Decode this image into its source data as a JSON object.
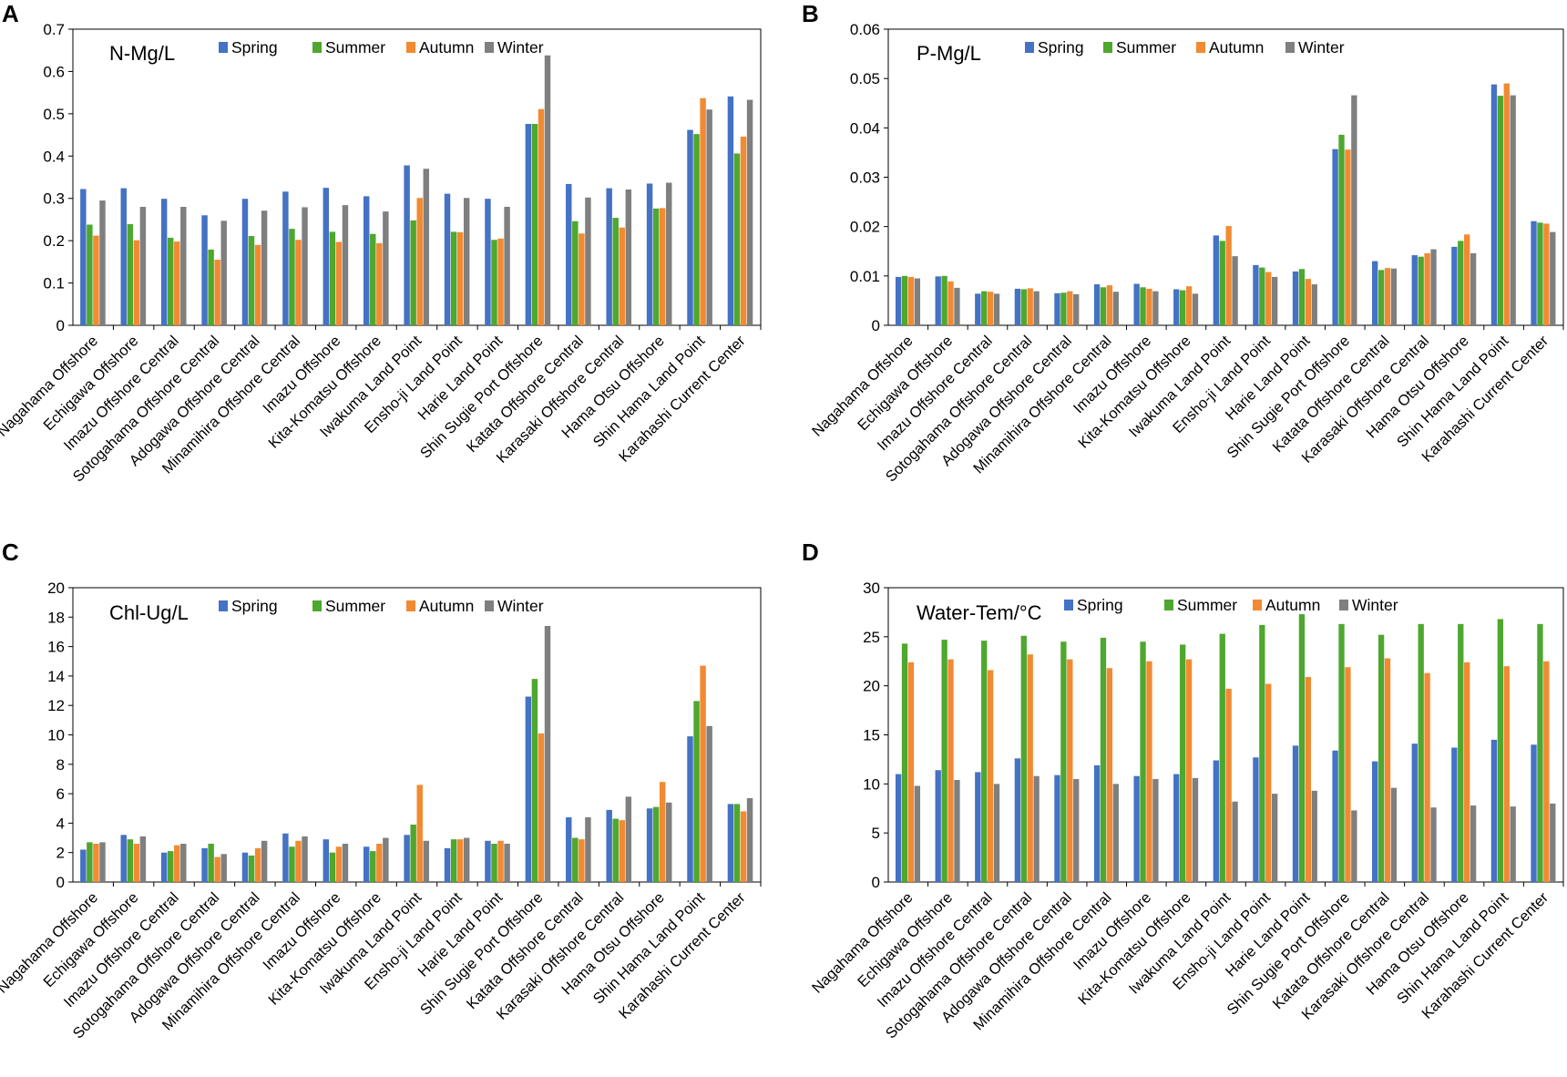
{
  "figure": {
    "colors": {
      "Spring": "#4472c4",
      "Summer": "#4ea72e",
      "Autumn": "#f28a32",
      "Winter": "#7f7f7f",
      "axis": "#000000"
    }
  },
  "chart_data": [
    {
      "panel": "A",
      "type": "bar",
      "title": "N-Mg/L",
      "ylim": [
        0,
        0.7
      ],
      "yticks": [
        "0",
        "0.1",
        "0.2",
        "0.3",
        "0.4",
        "0.5",
        "0.6",
        "0.7"
      ],
      "legend": "top",
      "categories": [
        "Nagahama Offshore",
        "Echigawa Offshore",
        "Imazu Offshore Central",
        "Sotogahama Offshore Central",
        "Adogawa Offshore Central",
        "Minamihira Offshore Central",
        "Imazu Offshore",
        "Kita-Komatsu Offshore",
        "Iwakuma Land Point",
        "Ensho-ji Land Point",
        "Harie Land Point",
        "Shin Sugie Port Offshore",
        "Katata Offshore Central",
        "Karasaki Offshore Central",
        "Hama Otsu Offshore",
        "Shin Hama Land Point",
        "Karahashi Current Center"
      ],
      "series": [
        {
          "name": "Spring",
          "values": [
            0.322,
            0.324,
            0.299,
            0.26,
            0.299,
            0.316,
            0.325,
            0.305,
            0.378,
            0.311,
            0.299,
            0.476,
            0.334,
            0.324,
            0.335,
            0.462,
            0.541
          ]
        },
        {
          "name": "Summer",
          "values": [
            0.238,
            0.239,
            0.207,
            0.179,
            0.211,
            0.228,
            0.221,
            0.216,
            0.248,
            0.221,
            0.202,
            0.476,
            0.246,
            0.254,
            0.276,
            0.452,
            0.406
          ]
        },
        {
          "name": "Autumn",
          "values": [
            0.212,
            0.201,
            0.198,
            0.155,
            0.19,
            0.202,
            0.197,
            0.194,
            0.301,
            0.22,
            0.205,
            0.511,
            0.217,
            0.231,
            0.277,
            0.537,
            0.446
          ]
        },
        {
          "name": "Winter",
          "values": [
            0.295,
            0.28,
            0.28,
            0.247,
            0.271,
            0.279,
            0.284,
            0.269,
            0.37,
            0.301,
            0.28,
            0.638,
            0.302,
            0.321,
            0.337,
            0.51,
            0.533
          ]
        }
      ]
    },
    {
      "panel": "B",
      "type": "bar",
      "title": "P-Mg/L",
      "ylim": [
        0,
        0.06
      ],
      "yticks": [
        "0",
        "0.01",
        "0.02",
        "0.03",
        "0.04",
        "0.05",
        "0.06"
      ],
      "legend": "top",
      "categories": [
        "Nagahama Offshore",
        "Echigawa Offshore",
        "Imazu Offshore Central",
        "Sotogahama Offshore Central",
        "Adogawa Offshore Central",
        "Minamihira Offshore Central",
        "Imazu Offshore",
        "Kita-Komatsu Offshore",
        "Iwakuma Land Point",
        "Ensho-ji Land Point",
        "Harie Land Point",
        "Shin Sugie Port Offshore",
        "Katata Offshore Central",
        "Karasaki Offshore Central",
        "Hama Otsu Offshore",
        "Shin Hama Land Point",
        "Karahashi Current Center"
      ],
      "series": [
        {
          "name": "Spring",
          "values": [
            0.0098,
            0.0099,
            0.0064,
            0.0074,
            0.0065,
            0.0083,
            0.0084,
            0.0073,
            0.0182,
            0.0122,
            0.0109,
            0.0357,
            0.013,
            0.0142,
            0.0159,
            0.0488,
            0.0211
          ]
        },
        {
          "name": "Summer",
          "values": [
            0.01,
            0.01,
            0.0069,
            0.0073,
            0.0066,
            0.0077,
            0.0077,
            0.0071,
            0.0171,
            0.0117,
            0.0114,
            0.0386,
            0.0112,
            0.0139,
            0.0171,
            0.0465,
            0.0208
          ]
        },
        {
          "name": "Autumn",
          "values": [
            0.0098,
            0.0089,
            0.0068,
            0.0075,
            0.0069,
            0.0081,
            0.0074,
            0.0079,
            0.0201,
            0.0108,
            0.0094,
            0.0356,
            0.0116,
            0.0146,
            0.0184,
            0.049,
            0.0206
          ]
        },
        {
          "name": "Winter",
          "values": [
            0.0095,
            0.0076,
            0.0064,
            0.0069,
            0.0063,
            0.0068,
            0.0069,
            0.0064,
            0.014,
            0.0098,
            0.0083,
            0.0466,
            0.0115,
            0.0154,
            0.0146,
            0.0466,
            0.0189
          ]
        }
      ]
    },
    {
      "panel": "C",
      "type": "bar",
      "title": "Chl-Ug/L",
      "ylim": [
        0,
        20
      ],
      "yticks": [
        "0",
        "2",
        "4",
        "6",
        "8",
        "10",
        "12",
        "14",
        "16",
        "18",
        "20"
      ],
      "legend": "top",
      "categories": [
        "Nagahama Offshore",
        "Echigawa Offshore",
        "Imazu Offshore Central",
        "Sotogahama Offshore Central",
        "Adogawa Offshore Central",
        "Minamihira Offshore Central",
        "Imazu Offshore",
        "Kita-Komatsu Offshore",
        "Iwakuma Land Point",
        "Ensho-ji Land Point",
        "Harie Land Point",
        "Shin Sugie Port Offshore",
        "Katata Offshore Central",
        "Karasaki Offshore Central",
        "Hama Otsu Offshore",
        "Shin Hama Land Point",
        "Karahashi Current Center"
      ],
      "series": [
        {
          "name": "Spring",
          "values": [
            2.2,
            3.2,
            2.0,
            2.3,
            2.0,
            3.3,
            2.9,
            2.4,
            3.2,
            2.3,
            2.8,
            12.6,
            4.4,
            4.9,
            5.0,
            9.9,
            5.3
          ]
        },
        {
          "name": "Summer",
          "values": [
            2.7,
            2.9,
            2.1,
            2.6,
            1.8,
            2.4,
            2.0,
            2.1,
            3.9,
            2.9,
            2.6,
            13.8,
            3.0,
            4.3,
            5.1,
            12.3,
            5.3
          ]
        },
        {
          "name": "Autumn",
          "values": [
            2.6,
            2.6,
            2.5,
            1.7,
            2.3,
            2.8,
            2.4,
            2.6,
            6.6,
            2.9,
            2.8,
            10.1,
            2.9,
            4.2,
            6.8,
            14.7,
            4.8
          ]
        },
        {
          "name": "Winter",
          "values": [
            2.7,
            3.1,
            2.6,
            1.9,
            2.8,
            3.1,
            2.6,
            3.0,
            2.8,
            3.0,
            2.6,
            17.4,
            4.4,
            5.8,
            5.4,
            10.6,
            5.7
          ]
        }
      ]
    },
    {
      "panel": "D",
      "type": "bar",
      "title": "Water-Tem/°C",
      "ylim": [
        0,
        30
      ],
      "yticks": [
        "0",
        "5",
        "10",
        "15",
        "20",
        "25",
        "30"
      ],
      "legend": "top",
      "categories": [
        "Nagahama Offshore",
        "Echigawa Offshore",
        "Imazu Offshore Central",
        "Sotogahama Offshore Central",
        "Adogawa Offshore Central",
        "Minamihira Offshore Central",
        "Imazu Offshore",
        "Kita-Komatsu Offshore",
        "Iwakuma Land Point",
        "Ensho-ji Land Point",
        "Harie Land Point",
        "Shin Sugie Port Offshore",
        "Katata Offshore Central",
        "Karasaki Offshore Central",
        "Hama Otsu Offshore",
        "Shin Hama Land Point",
        "Karahashi Current Center"
      ],
      "series": [
        {
          "name": "Spring",
          "values": [
            11.0,
            11.4,
            11.2,
            12.6,
            10.9,
            11.9,
            10.8,
            11.0,
            12.4,
            12.7,
            13.9,
            13.4,
            12.3,
            14.1,
            13.7,
            14.5,
            14.0
          ]
        },
        {
          "name": "Summer",
          "values": [
            24.3,
            24.7,
            24.6,
            25.1,
            24.5,
            24.9,
            24.5,
            24.2,
            25.3,
            26.2,
            27.3,
            26.3,
            25.2,
            26.3,
            26.3,
            26.8,
            26.3
          ]
        },
        {
          "name": "Autumn",
          "values": [
            22.4,
            22.7,
            21.6,
            23.2,
            22.7,
            21.8,
            22.5,
            22.7,
            19.7,
            20.2,
            20.9,
            21.9,
            22.8,
            21.3,
            22.4,
            22.0,
            22.5
          ]
        },
        {
          "name": "Winter",
          "values": [
            9.8,
            10.4,
            10.0,
            10.8,
            10.5,
            10.0,
            10.5,
            10.6,
            8.2,
            9.0,
            9.3,
            7.3,
            9.6,
            7.6,
            7.8,
            7.7,
            8.0
          ]
        }
      ]
    }
  ]
}
